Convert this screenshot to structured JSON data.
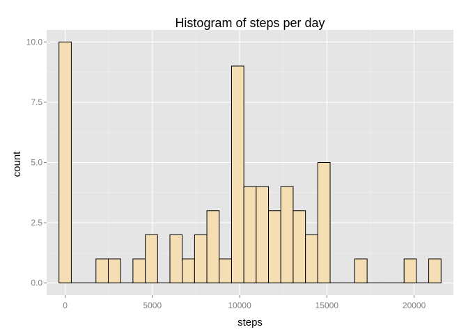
{
  "chart_data": {
    "type": "bar",
    "title": "Histogram of steps per day",
    "xlabel": "steps",
    "ylabel": "count",
    "bin_width": 706.4,
    "bin_centers": [
      0,
      706.4,
      1412.8,
      2119.2,
      2825.6,
      3532,
      4238.4,
      4944.8,
      5651.2,
      6357.6,
      7064,
      7770.4,
      8476.8,
      9183.2,
      9889.6,
      10596,
      11302.4,
      12008.8,
      12715.2,
      13421.6,
      14128,
      14834.4,
      15540.8,
      16247.2,
      16953.6,
      17660,
      18366.4,
      19072.8,
      19779.2,
      20485.6,
      21192
    ],
    "values": [
      10,
      0,
      0,
      1,
      1,
      0,
      1,
      2,
      0,
      2,
      1,
      2,
      3,
      1,
      9,
      4,
      4,
      3,
      4,
      3,
      2,
      5,
      0,
      0,
      1,
      0,
      0,
      0,
      1,
      0,
      1
    ],
    "xlim": [
      -1059.6,
      22251.6
    ],
    "ylim": [
      -0.5,
      10.5
    ],
    "x_ticks": [
      0,
      5000,
      10000,
      15000,
      20000
    ],
    "x_tick_labels": [
      "0",
      "5000",
      "10000",
      "15000",
      "20000"
    ],
    "y_ticks": [
      0,
      2.5,
      5,
      7.5,
      10
    ],
    "y_tick_labels": [
      "0.0",
      "2.5",
      "5.0",
      "7.5",
      "10.0"
    ],
    "grid": true,
    "colors": {
      "panel_background": "#e5e5e5",
      "grid_major": "#ffffff",
      "grid_minor": "#f2f2f2",
      "bar_fill": "#f5deb3",
      "bar_outline": "#000000",
      "tick_color": "#7f7f7f"
    }
  }
}
